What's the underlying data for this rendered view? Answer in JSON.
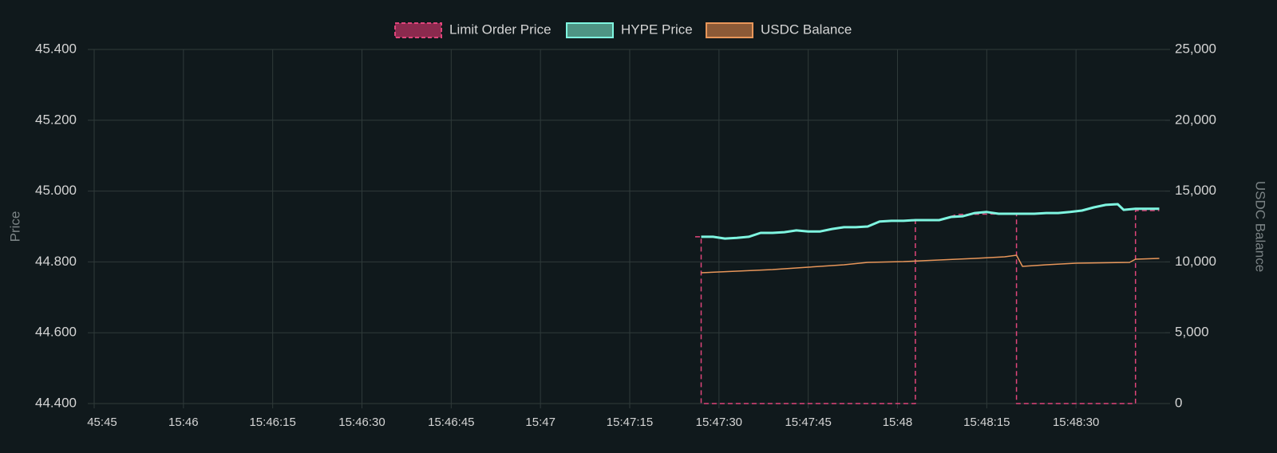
{
  "chart_data": {
    "type": "line",
    "legend": "top",
    "grid": true,
    "y_title": "Price",
    "y2_title": "USDC Balance",
    "xlim": [
      "15:45:45",
      "15:48:45"
    ],
    "xticks": [
      {
        "value": "15:45:45",
        "label": "45:45"
      },
      {
        "value": "15:46:00",
        "label": "15:46"
      },
      {
        "value": "15:46:15",
        "label": "15:46:15"
      },
      {
        "value": "15:46:30",
        "label": "15:46:30"
      },
      {
        "value": "15:46:45",
        "label": "15:46:45"
      },
      {
        "value": "15:47:00",
        "label": "15:47"
      },
      {
        "value": "15:47:15",
        "label": "15:47:15"
      },
      {
        "value": "15:47:30",
        "label": "15:47:30"
      },
      {
        "value": "15:47:45",
        "label": "15:47:45"
      },
      {
        "value": "15:48:00",
        "label": "15:48"
      },
      {
        "value": "15:48:15",
        "label": "15:48:15"
      },
      {
        "value": "15:48:30",
        "label": "15:48:30"
      }
    ],
    "ylim": [
      44.4,
      45.4
    ],
    "yticks": [
      {
        "value": 44.4,
        "label": "44.400"
      },
      {
        "value": 44.6,
        "label": "44.600"
      },
      {
        "value": 44.8,
        "label": "44.800"
      },
      {
        "value": 45.0,
        "label": "45.000"
      },
      {
        "value": 45.2,
        "label": "45.200"
      },
      {
        "value": 45.4,
        "label": "45.400"
      }
    ],
    "y2lim": [
      0,
      25000
    ],
    "y2ticks": [
      0,
      {
        "value": 5000,
        "label": "5,000"
      },
      {
        "value": 10000,
        "label": "10,000"
      },
      {
        "value": 15000,
        "label": "15,000"
      },
      {
        "value": 20000,
        "label": "20,000"
      },
      {
        "value": 25000,
        "label": "25,000"
      }
    ],
    "series": [
      {
        "name": "Limit Order Price",
        "color": "#e0457b",
        "fill": "#8b2a4e",
        "dashed": true,
        "x": [
          "15:47:26",
          "15:47:27",
          "15:47:27",
          "15:48:03",
          "15:48:03",
          "15:48:07",
          "15:48:10",
          "15:48:20",
          "15:48:20",
          "15:48:40",
          "15:48:40",
          "15:48:44"
        ],
        "values": [
          44.871,
          44.871,
          44.4,
          44.4,
          44.918,
          44.918,
          44.934,
          44.936,
          44.4,
          44.4,
          44.945,
          44.945
        ]
      },
      {
        "name": "HYPE Price",
        "color": "#7ff5e0",
        "fill": "#4e9484",
        "dashed": false,
        "x": [
          "15:47:27",
          "15:47:29",
          "15:47:31",
          "15:47:33",
          "15:47:35",
          "15:47:37",
          "15:47:39",
          "15:47:41",
          "15:47:43",
          "15:47:45",
          "15:47:47",
          "15:47:49",
          "15:47:51",
          "15:47:53",
          "15:47:55",
          "15:47:57",
          "15:47:59",
          "15:48:01",
          "15:48:03",
          "15:48:05",
          "15:48:07",
          "15:48:09",
          "15:48:11",
          "15:48:13",
          "15:48:15",
          "15:48:17",
          "15:48:19",
          "15:48:21",
          "15:48:23",
          "15:48:25",
          "15:48:27",
          "15:48:29",
          "15:48:31",
          "15:48:33",
          "15:48:35",
          "15:48:37",
          "15:48:38",
          "15:48:40",
          "15:48:42",
          "15:48:44"
        ],
        "values": [
          44.871,
          44.871,
          44.866,
          44.868,
          44.871,
          44.882,
          44.882,
          44.884,
          44.889,
          44.886,
          44.886,
          44.893,
          44.898,
          44.898,
          44.9,
          44.914,
          44.916,
          44.916,
          44.918,
          44.918,
          44.918,
          44.927,
          44.929,
          44.938,
          44.941,
          44.936,
          44.936,
          44.936,
          44.936,
          44.938,
          44.938,
          44.941,
          44.945,
          44.954,
          44.961,
          44.963,
          44.947,
          44.95,
          44.95,
          44.95
        ]
      },
      {
        "name": "USDC Balance",
        "color": "#e8965a",
        "fill": "#8c5a37",
        "dashed": false,
        "axis": "y2",
        "x": [
          "15:47:27",
          "15:47:33",
          "15:47:39",
          "15:47:45",
          "15:47:51",
          "15:47:55",
          "15:48:01",
          "15:48:07",
          "15:48:13",
          "15:48:18",
          "15:48:20",
          "15:48:21",
          "15:48:25",
          "15:48:30",
          "15:48:39",
          "15:48:40",
          "15:48:44"
        ],
        "values": [
          9234,
          9347,
          9459,
          9628,
          9797,
          9966,
          10023,
          10135,
          10248,
          10360,
          10473,
          9685,
          9797,
          9910,
          9966,
          10191,
          10248
        ]
      }
    ]
  }
}
